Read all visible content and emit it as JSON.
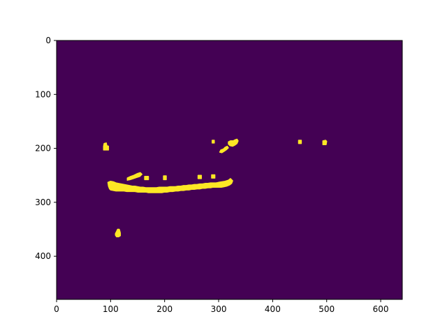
{
  "chart_data": {
    "type": "heatmap",
    "title": "",
    "xlabel": "",
    "ylabel": "",
    "xlim": [
      0,
      640
    ],
    "ylim": [
      480,
      0
    ],
    "x_ticks": [
      0,
      100,
      200,
      300,
      400,
      500,
      600
    ],
    "y_ticks": [
      0,
      100,
      200,
      300,
      400
    ],
    "x_tick_labels": [
      "0",
      "100",
      "200",
      "300",
      "400",
      "500",
      "600"
    ],
    "y_tick_labels": [
      "0",
      "100",
      "200",
      "300",
      "400"
    ],
    "grid": false,
    "colormap": "viridis",
    "values": [
      0,
      1
    ],
    "background_value": 0,
    "background_color": "#440154",
    "foreground_value": 1,
    "foreground_color": "#fde725",
    "regions": [
      {
        "name": "main-band",
        "points": [
          [
            95,
            263
          ],
          [
            96,
            270
          ],
          [
            98,
            275
          ],
          [
            100,
            277
          ],
          [
            105,
            278
          ],
          [
            110,
            279
          ],
          [
            115,
            279
          ],
          [
            120,
            279
          ],
          [
            125,
            279
          ],
          [
            130,
            280
          ],
          [
            135,
            280
          ],
          [
            140,
            280
          ],
          [
            145,
            280
          ],
          [
            150,
            281
          ],
          [
            155,
            281
          ],
          [
            160,
            281
          ],
          [
            165,
            281
          ],
          [
            170,
            282
          ],
          [
            175,
            282
          ],
          [
            180,
            282
          ],
          [
            185,
            282
          ],
          [
            190,
            282
          ],
          [
            195,
            282
          ],
          [
            200,
            281
          ],
          [
            205,
            281
          ],
          [
            210,
            280
          ],
          [
            215,
            280
          ],
          [
            220,
            279
          ],
          [
            225,
            279
          ],
          [
            230,
            278
          ],
          [
            235,
            278
          ],
          [
            240,
            277
          ],
          [
            245,
            277
          ],
          [
            250,
            276
          ],
          [
            255,
            276
          ],
          [
            260,
            275
          ],
          [
            265,
            275
          ],
          [
            270,
            274
          ],
          [
            275,
            274
          ],
          [
            280,
            273
          ],
          [
            285,
            273
          ],
          [
            290,
            272
          ],
          [
            295,
            272
          ],
          [
            300,
            272
          ],
          [
            305,
            272
          ],
          [
            310,
            271
          ],
          [
            315,
            270
          ],
          [
            320,
            268
          ],
          [
            324,
            265
          ],
          [
            326,
            260
          ],
          [
            322,
            256
          ],
          [
            318,
            259
          ],
          [
            312,
            261
          ],
          [
            306,
            262
          ],
          [
            300,
            263
          ],
          [
            295,
            264
          ],
          [
            290,
            264
          ],
          [
            285,
            264
          ],
          [
            280,
            265
          ],
          [
            275,
            265
          ],
          [
            270,
            266
          ],
          [
            265,
            266
          ],
          [
            260,
            267
          ],
          [
            255,
            267
          ],
          [
            250,
            268
          ],
          [
            245,
            268
          ],
          [
            240,
            269
          ],
          [
            235,
            269
          ],
          [
            230,
            270
          ],
          [
            225,
            270
          ],
          [
            220,
            271
          ],
          [
            215,
            271
          ],
          [
            210,
            271
          ],
          [
            205,
            272
          ],
          [
            200,
            272
          ],
          [
            195,
            272
          ],
          [
            190,
            272
          ],
          [
            185,
            273
          ],
          [
            180,
            273
          ],
          [
            175,
            273
          ],
          [
            170,
            273
          ],
          [
            165,
            273
          ],
          [
            160,
            272
          ],
          [
            155,
            272
          ],
          [
            150,
            271
          ],
          [
            145,
            270
          ],
          [
            140,
            270
          ],
          [
            135,
            269
          ],
          [
            130,
            268
          ],
          [
            125,
            267
          ],
          [
            120,
            266
          ],
          [
            115,
            265
          ],
          [
            110,
            264
          ],
          [
            105,
            262
          ],
          [
            100,
            261
          ]
        ]
      },
      {
        "name": "upper-arc",
        "points": [
          [
            131,
            255
          ],
          [
            137,
            252
          ],
          [
            143,
            250
          ],
          [
            149,
            247
          ],
          [
            155,
            245
          ],
          [
            158,
            248
          ],
          [
            154,
            252
          ],
          [
            148,
            254
          ],
          [
            142,
            256
          ],
          [
            136,
            258
          ],
          [
            131,
            259
          ]
        ]
      },
      {
        "name": "blob-a",
        "points": [
          [
            87,
            196
          ],
          [
            88,
            191
          ],
          [
            92,
            190
          ],
          [
            93,
            195
          ],
          [
            96,
            196
          ],
          [
            96,
            203
          ],
          [
            87,
            203
          ]
        ]
      },
      {
        "name": "blob-b",
        "points": [
          [
            109,
            358
          ],
          [
            111,
            354
          ],
          [
            113,
            350
          ],
          [
            116,
            350
          ],
          [
            117,
            353
          ],
          [
            118,
            357
          ],
          [
            118,
            362
          ],
          [
            115,
            364
          ],
          [
            111,
            364
          ],
          [
            109,
            361
          ]
        ]
      },
      {
        "name": "blob-c",
        "points": [
          [
            288,
            185
          ],
          [
            292,
            185
          ],
          [
            292,
            190
          ],
          [
            288,
            190
          ]
        ]
      },
      {
        "name": "blob-d",
        "points": [
          [
            302,
            207
          ],
          [
            304,
            203
          ],
          [
            309,
            201
          ],
          [
            312,
            198
          ],
          [
            316,
            196
          ],
          [
            318,
            199
          ],
          [
            315,
            202
          ],
          [
            311,
            205
          ],
          [
            306,
            208
          ]
        ]
      },
      {
        "name": "blob-e",
        "points": [
          [
            318,
            188
          ],
          [
            322,
            186
          ],
          [
            327,
            186
          ],
          [
            331,
            184
          ],
          [
            334,
            183
          ],
          [
            336,
            186
          ],
          [
            334,
            191
          ],
          [
            330,
            194
          ],
          [
            326,
            196
          ],
          [
            321,
            195
          ],
          [
            318,
            192
          ]
        ]
      },
      {
        "name": "blob-f",
        "points": [
          [
            448,
            185
          ],
          [
            453,
            185
          ],
          [
            453,
            191
          ],
          [
            448,
            191
          ]
        ]
      },
      {
        "name": "blob-g",
        "points": [
          [
            493,
            186
          ],
          [
            498,
            185
          ],
          [
            500,
            187
          ],
          [
            499,
            193
          ],
          [
            493,
            193
          ]
        ]
      },
      {
        "name": "blob-h",
        "points": [
          [
            198,
            251
          ],
          [
            203,
            251
          ],
          [
            203,
            258
          ],
          [
            198,
            258
          ]
        ]
      },
      {
        "name": "blob-i",
        "points": [
          [
            163,
            252
          ],
          [
            170,
            252
          ],
          [
            170,
            258
          ],
          [
            163,
            258
          ]
        ]
      },
      {
        "name": "blob-j",
        "points": [
          [
            262,
            250
          ],
          [
            268,
            250
          ],
          [
            268,
            256
          ],
          [
            262,
            256
          ]
        ]
      },
      {
        "name": "blob-k",
        "points": [
          [
            287,
            249
          ],
          [
            293,
            249
          ],
          [
            293,
            255
          ],
          [
            287,
            255
          ]
        ]
      }
    ]
  }
}
